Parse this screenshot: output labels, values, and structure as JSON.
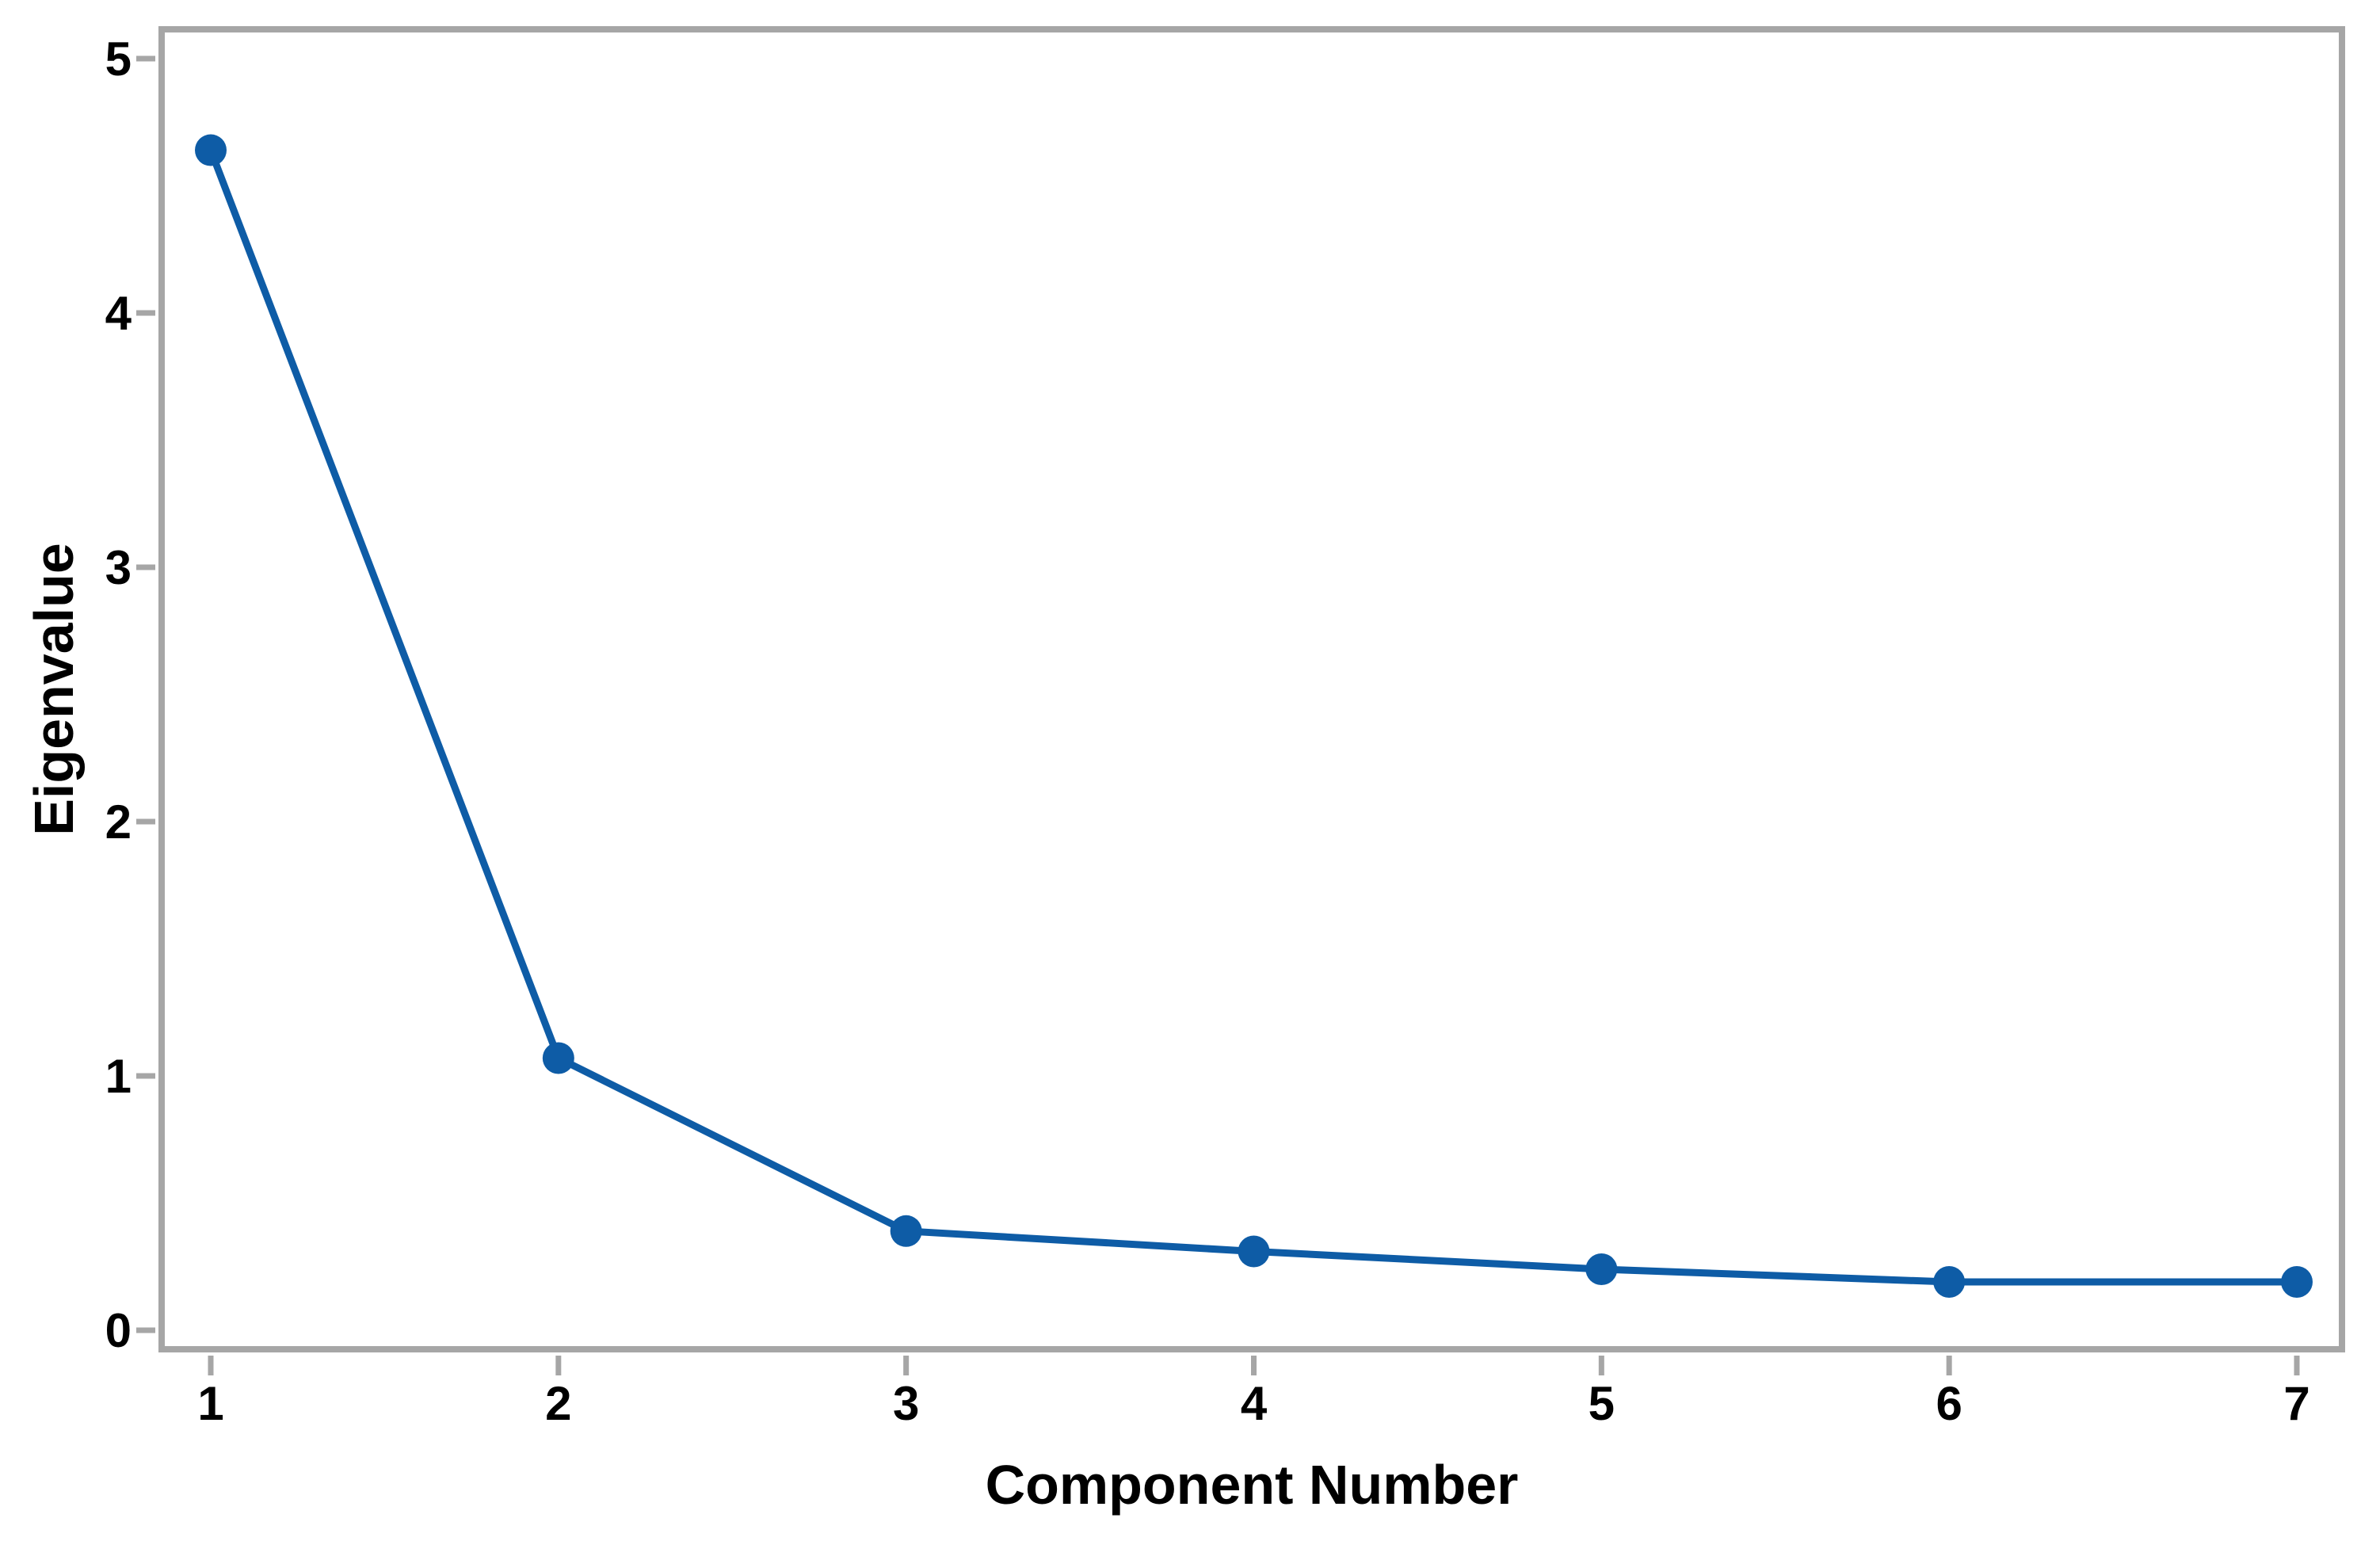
{
  "chart_data": {
    "type": "line",
    "title": "",
    "xlabel": "Component Number",
    "ylabel": "Eigenvalue",
    "categories": [
      1,
      2,
      3,
      4,
      5,
      6,
      7
    ],
    "series": [
      {
        "name": "Eigenvalue",
        "values": [
          4.64,
          1.07,
          0.39,
          0.31,
          0.24,
          0.19,
          0.19
        ]
      }
    ],
    "x_ticks": [
      "1",
      "2",
      "3",
      "4",
      "5",
      "6",
      "7"
    ],
    "y_ticks": [
      "0",
      "1",
      "2",
      "3",
      "4",
      "5"
    ],
    "xlim": [
      1,
      7
    ],
    "ylim": [
      0,
      5
    ],
    "grid": "off",
    "legend": "none",
    "marker": "filled-circle",
    "colors": {
      "series": "#0E5CA6",
      "axis": "#A6A6A6",
      "text": "#000000",
      "background": "#FFFFFF"
    }
  }
}
